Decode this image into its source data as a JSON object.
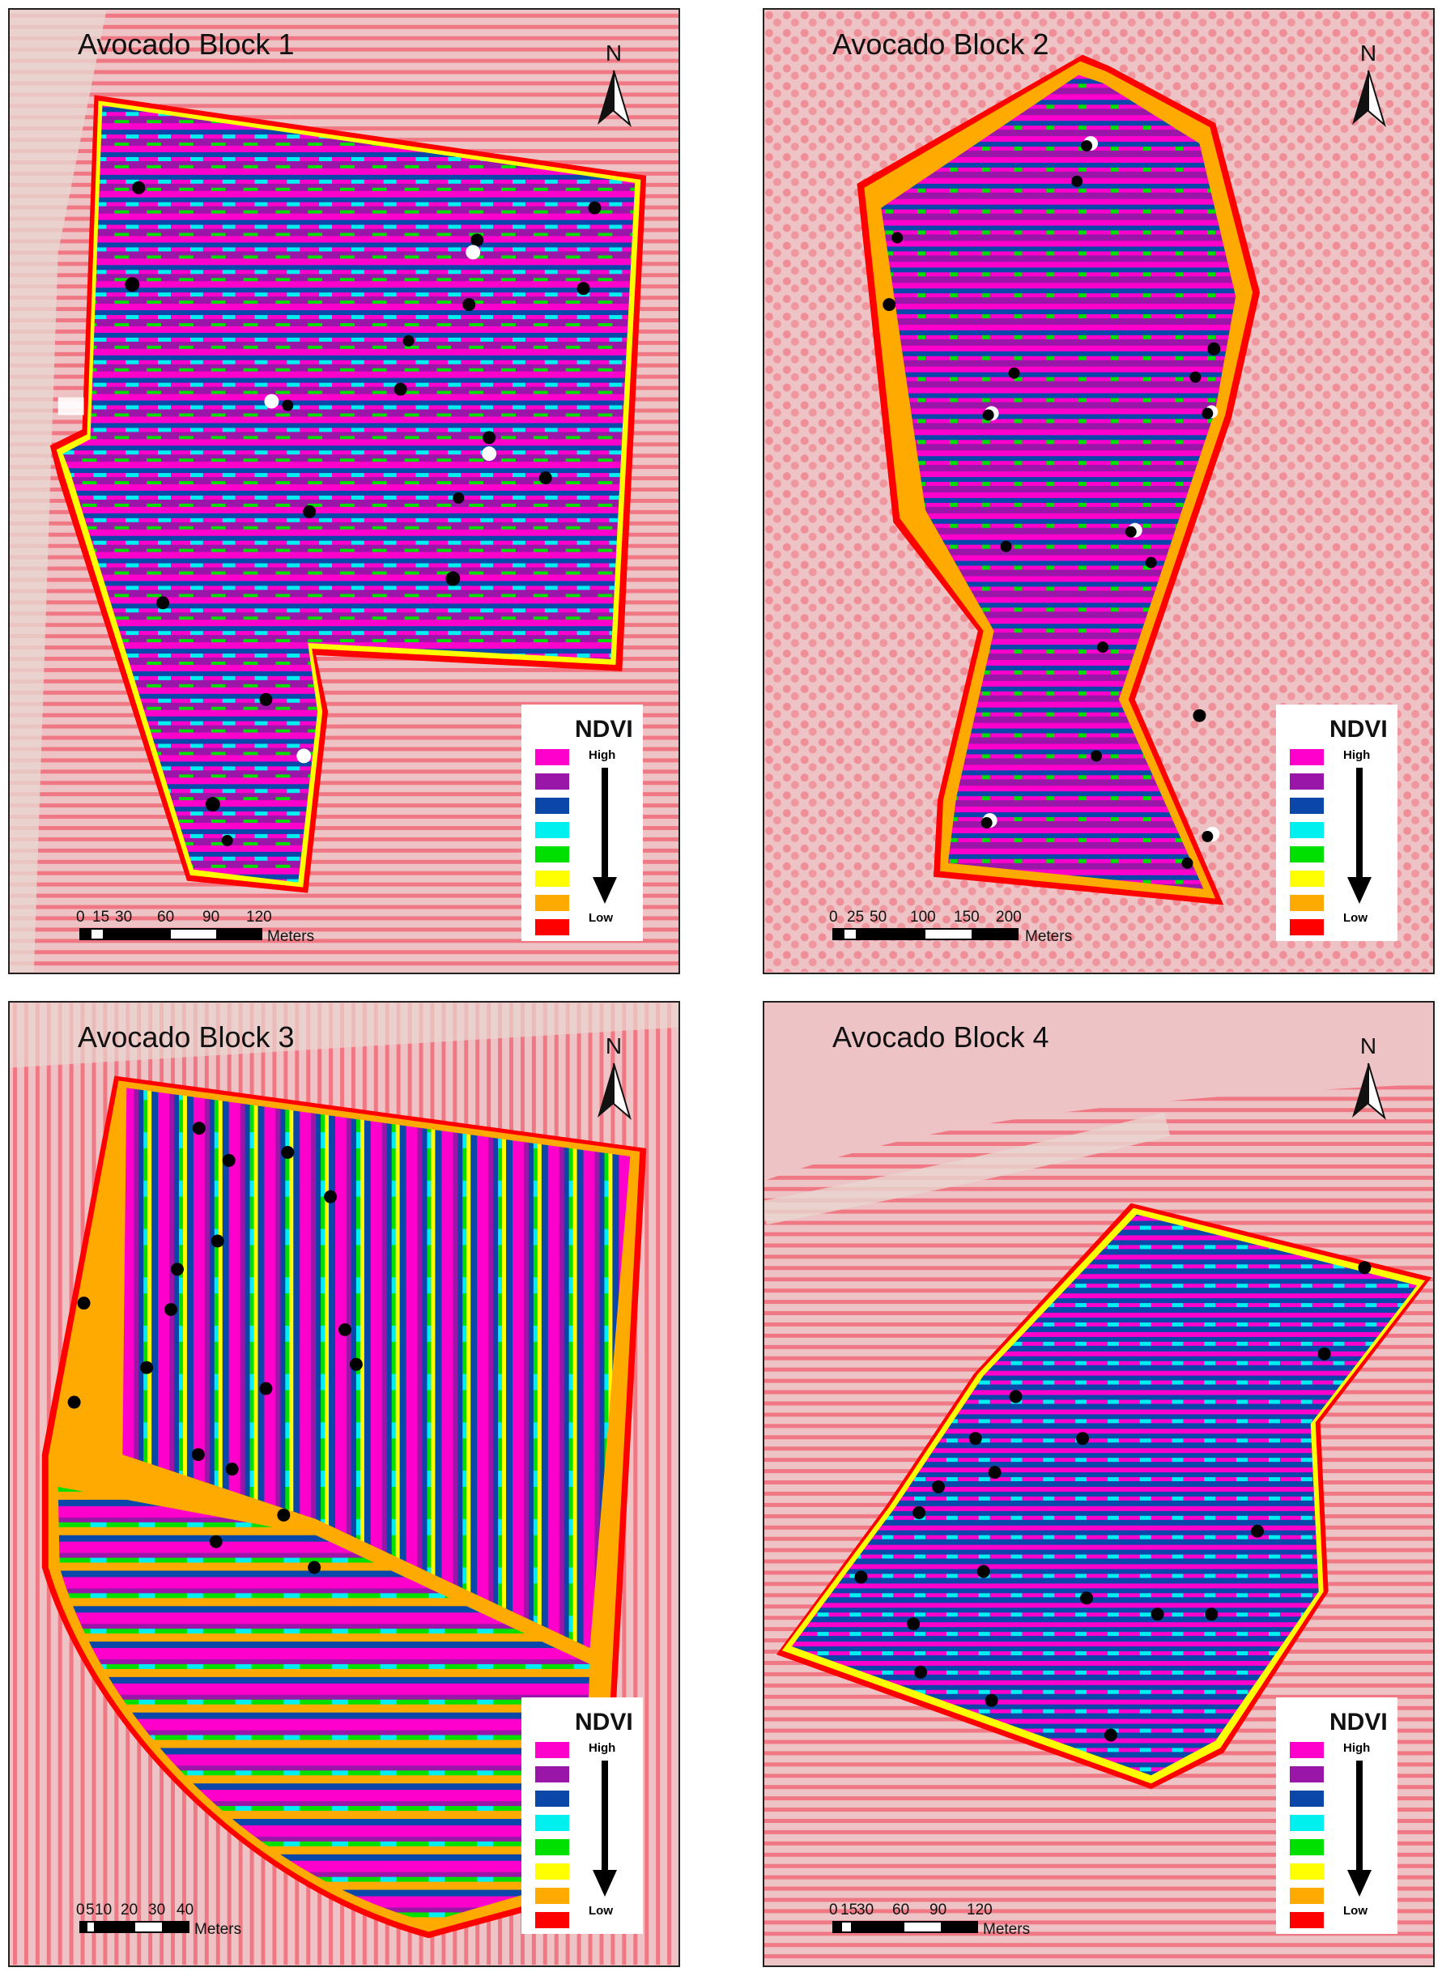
{
  "panels": [
    {
      "title": "Avocado Block 1",
      "north_label": "N",
      "scale": {
        "ticks": [
          "0",
          "15",
          "30",
          "60",
          "90",
          "120"
        ],
        "unit": "Meters"
      },
      "legend": {
        "title": "NDVI",
        "high": "High",
        "low": "Low"
      }
    },
    {
      "title": "Avocado Block 2",
      "north_label": "N",
      "scale": {
        "ticks": [
          "0",
          "25",
          "50",
          "100",
          "150",
          "200"
        ],
        "unit": "Meters"
      },
      "legend": {
        "title": "NDVI",
        "high": "High",
        "low": "Low"
      }
    },
    {
      "title": "Avocado Block 3",
      "north_label": "N",
      "scale": {
        "ticks": [
          "0",
          "5",
          "10",
          "20",
          "30",
          "40"
        ],
        "unit": "Meters"
      },
      "legend": {
        "title": "NDVI",
        "high": "High",
        "low": "Low"
      }
    },
    {
      "title": "Avocado Block 4",
      "north_label": "N",
      "scale": {
        "ticks": [
          "0",
          "15",
          "30",
          "60",
          "90",
          "120"
        ],
        "unit": "Meters"
      },
      "legend": {
        "title": "NDVI",
        "high": "High",
        "low": "Low"
      }
    }
  ],
  "ndvi_colors": [
    "#ff00cc",
    "#9a16a8",
    "#0a47a8",
    "#00f0f0",
    "#00e000",
    "#ffff00",
    "#ffaa00",
    "#ff0000"
  ],
  "colors": {
    "background_imagery": "#eec3c6",
    "tree_rows": "#f07884",
    "sample_point": "#000000",
    "sample_point_alt": "#ffffff"
  }
}
